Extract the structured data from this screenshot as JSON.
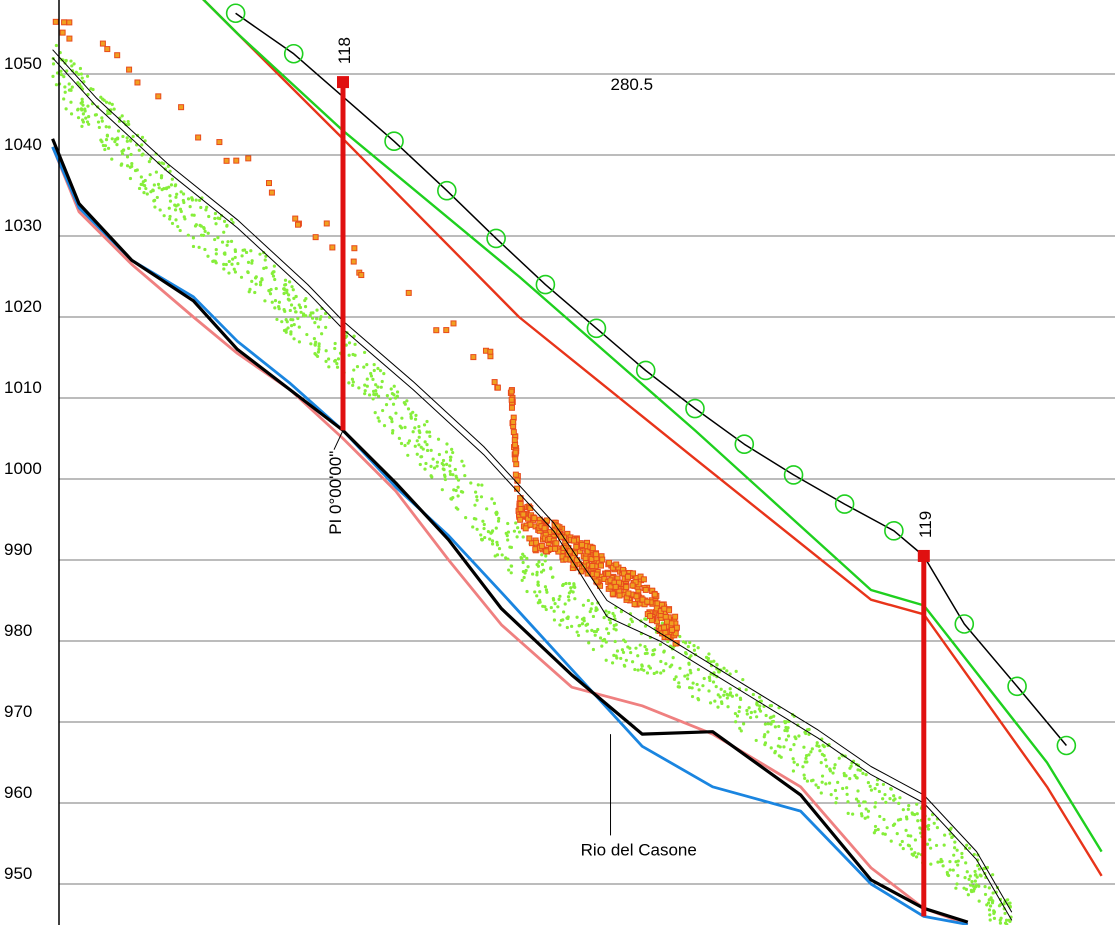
{
  "chart_data": {
    "type": "line",
    "title": "",
    "xlabel": "",
    "ylabel": "",
    "ylim": [
      945,
      1060
    ],
    "yticks": [
      1050,
      1040,
      1030,
      1020,
      1010,
      1000,
      990,
      980,
      970,
      960,
      950
    ],
    "grid": true,
    "legend": "none",
    "x_units": "chainage (no axis labels shown)",
    "pi_stations": [
      {
        "label": "118",
        "x": 0,
        "top": 1049,
        "bottom": 1006
      },
      {
        "label": "119",
        "x": 330,
        "top": 990.5,
        "bottom": 946
      }
    ],
    "annotations": {
      "length_label": "280.5",
      "pi_label": "PI 0°00'00\"",
      "river_label": "Rio del Casone"
    },
    "series": [
      {
        "color": "#000000",
        "markers": "circle-open-green",
        "x": [
          -61,
          -28,
          29,
          59,
          87,
          115,
          144,
          172,
          200,
          228,
          256,
          285,
          313,
          330,
          353,
          383,
          411
        ],
        "y": [
          1057.5,
          1052.5,
          1041.7,
          1035.6,
          1029.7,
          1024.0,
          1018.6,
          1013.4,
          1008.7,
          1004.3,
          1000.5,
          996.9,
          993.6,
          990.5,
          982.1,
          974.4,
          967.1
        ]
      },
      {
        "color": "#1fd01f",
        "x": [
          -120,
          -60,
          0,
          100,
          200,
          300,
          330,
          400,
          431
        ],
        "y": [
          1068,
          1055,
          1043,
          1025,
          1006,
          986.3,
          984.4,
          965,
          954
        ]
      },
      {
        "color": "#e8341a",
        "x": [
          -120,
          -60,
          0,
          100,
          200,
          300,
          330,
          400,
          431
        ],
        "y": [
          1068,
          1055,
          1042,
          1020,
          1002.5,
          985.1,
          983.3,
          962,
          951
        ]
      },
      {
        "color": "#000000",
        "name": "Rio del Casone",
        "x": [
          -165,
          -150,
          -120,
          -85,
          -60,
          -30,
          0,
          30,
          60,
          90,
          130,
          170,
          210,
          260,
          300,
          330,
          355
        ],
        "y": [
          1042,
          1034,
          1027,
          1022,
          1016,
          1011,
          1006,
          999.5,
          992.5,
          984,
          975.8,
          968.5,
          968.8,
          961,
          950.5,
          947,
          945.3
        ]
      },
      {
        "color": "#1a85e0",
        "x": [
          -165,
          -150,
          -120,
          -85,
          -60,
          -30,
          0,
          30,
          60,
          90,
          130,
          170,
          210,
          260,
          300,
          330,
          355
        ],
        "y": [
          1041,
          1033.5,
          1027,
          1022.5,
          1017,
          1011.8,
          1006,
          999,
          993,
          986,
          976.5,
          967,
          962,
          959,
          950,
          946,
          945
        ]
      },
      {
        "color": "#ef8080",
        "x": [
          -165,
          -150,
          -120,
          -85,
          -60,
          -30,
          0,
          30,
          60,
          90,
          130,
          170,
          210,
          260,
          300,
          330,
          355
        ],
        "y": [
          1041,
          1033,
          1026.5,
          1020,
          1015.5,
          1011,
          1005,
          998.5,
          990,
          982,
          974.3,
          972,
          968.5,
          962,
          952,
          947,
          945
        ]
      },
      {
        "color": "#000000",
        "x": [
          -165,
          -140,
          -100,
          -60,
          -20,
          0,
          40,
          80,
          120,
          150,
          180,
          210,
          240,
          270,
          300,
          330,
          360,
          380
        ],
        "y": [
          1052,
          1046,
          1038,
          1031,
          1023,
          1018.5,
          1011,
          1003,
          993.5,
          983,
          980,
          976,
          972,
          968,
          963.5,
          960,
          953,
          945.5
        ]
      },
      {
        "color": "#000000",
        "x": [
          -165,
          -140,
          -100,
          -60,
          -20,
          0,
          40,
          80,
          120,
          150,
          180,
          210,
          240,
          270,
          300,
          330,
          360,
          380
        ],
        "y": [
          1053,
          1047,
          1039,
          1032,
          1024,
          1019.5,
          1012,
          1004,
          994.5,
          985,
          981,
          977,
          973,
          969,
          964.5,
          961,
          954,
          946.5
        ]
      }
    ],
    "scatter": [
      {
        "color": "#86ee3a",
        "x": [
          -165,
          -140,
          -115,
          -90,
          -60,
          -30,
          0,
          30,
          60,
          90,
          120,
          150,
          180,
          210,
          240,
          270,
          300,
          330,
          360,
          380
        ],
        "y": [
          1051,
          1045,
          1039,
          1033,
          1028,
          1021,
          1016,
          1008,
          1001,
          993,
          986,
          981,
          979,
          975,
          970,
          965,
          960,
          956,
          951,
          944
        ],
        "spread": 3.5
      },
      {
        "color": "#e84a1c",
        "x": [
          -165,
          95,
          100,
          110,
          120,
          130,
          140,
          150,
          160,
          170,
          180,
          190
        ],
        "y": [
          1057,
          1012,
          997,
          993,
          993,
          991,
          990,
          988,
          987,
          986,
          983,
          981
        ],
        "spread": 2
      }
    ]
  }
}
